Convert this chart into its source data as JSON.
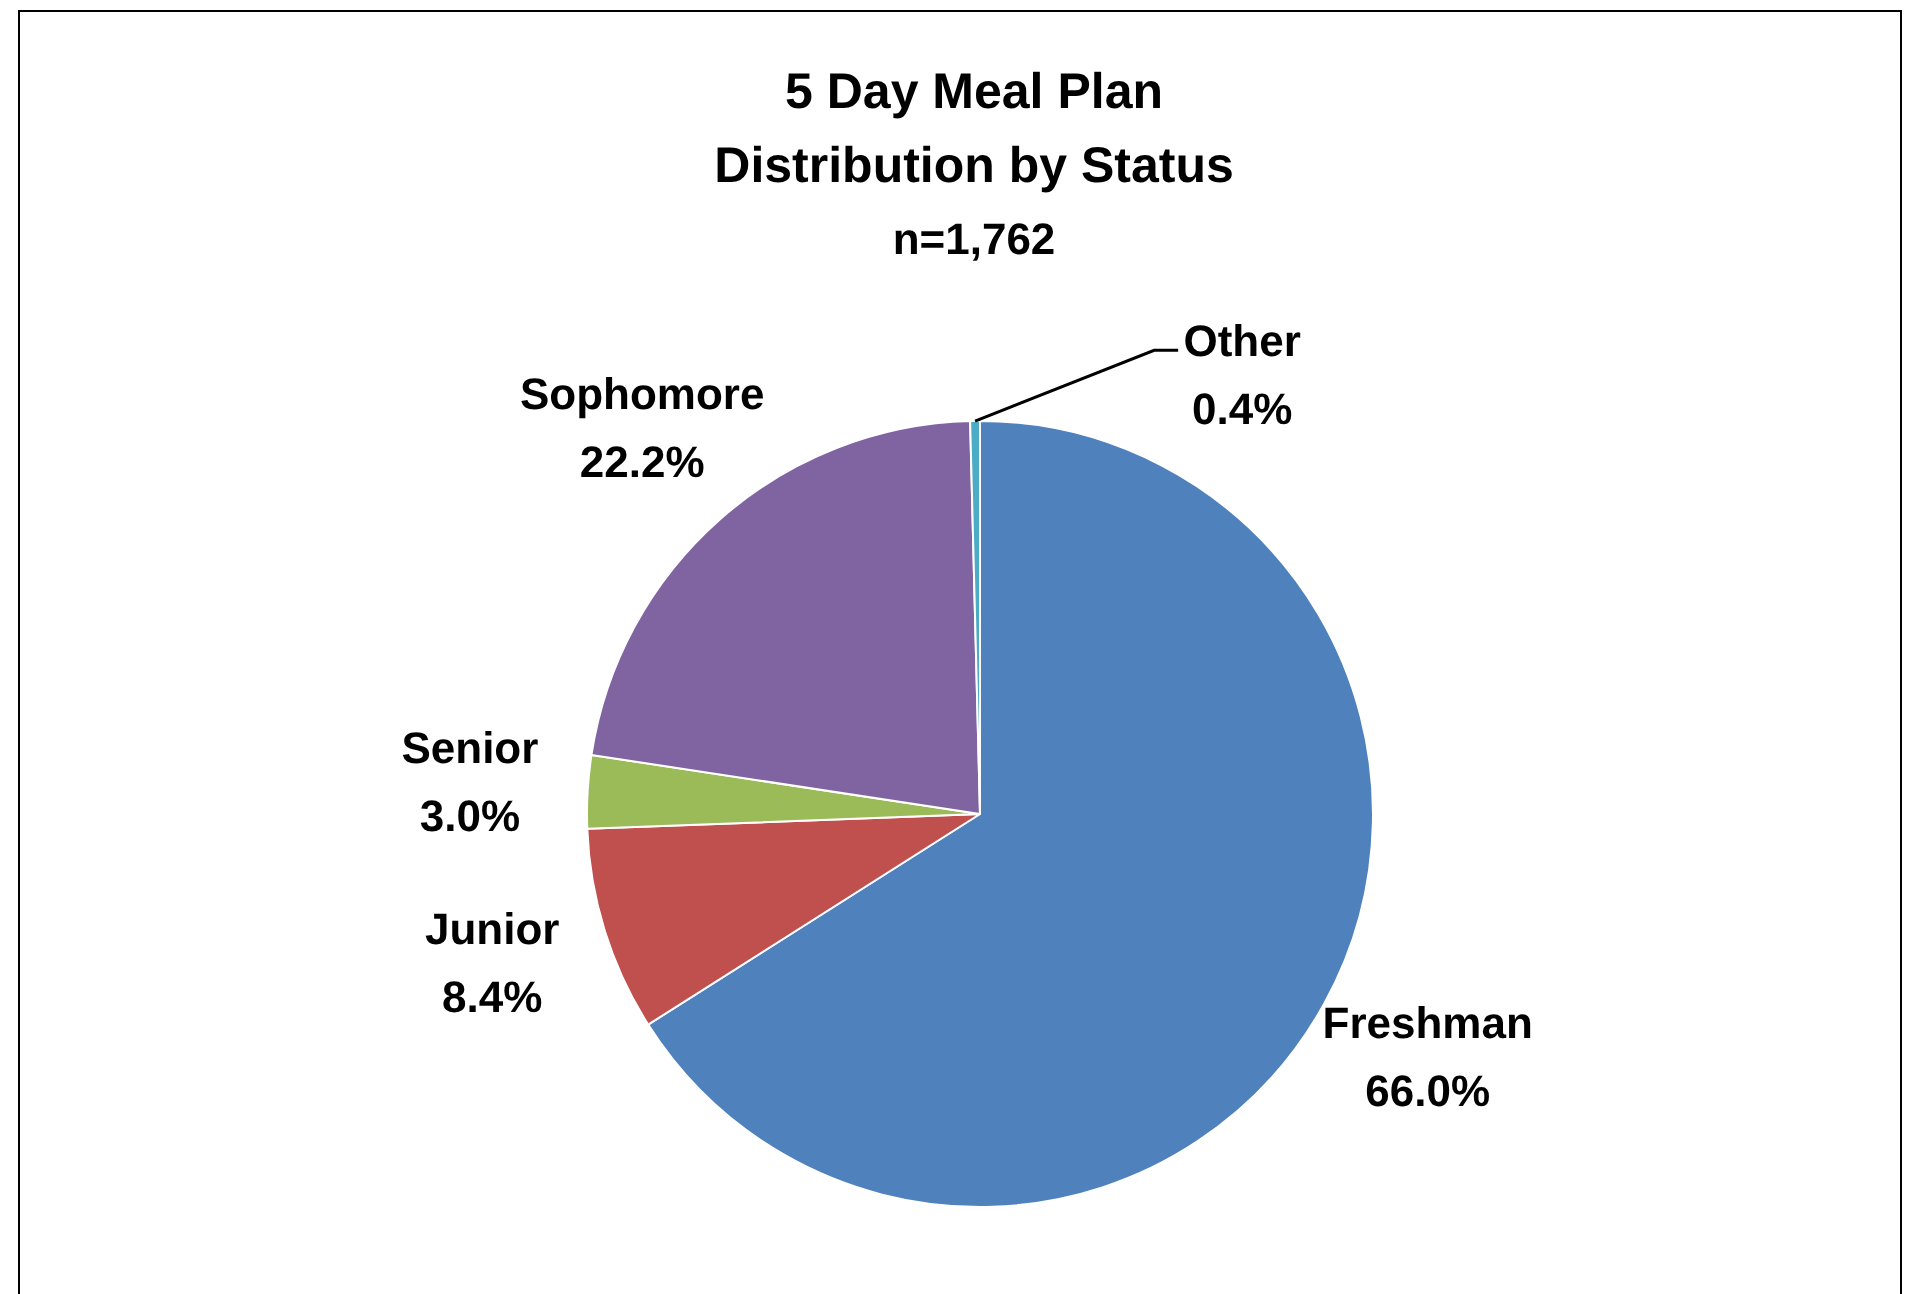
{
  "chart_data": {
    "type": "pie",
    "title": "5 Day Meal Plan Distribution by Status",
    "subtitle": "n=1,762",
    "categories": [
      "Freshman",
      "Junior",
      "Senior",
      "Sophomore",
      "Other"
    ],
    "values": [
      66.0,
      8.4,
      3.0,
      22.2,
      0.4
    ],
    "value_labels": [
      "66.0%",
      "8.4%",
      "3.0%",
      "22.2%",
      "0.4%"
    ],
    "colors": [
      "#4f81bd",
      "#c0504d",
      "#9bbb59",
      "#8064a2",
      "#4bacc6"
    ],
    "legend": false
  }
}
